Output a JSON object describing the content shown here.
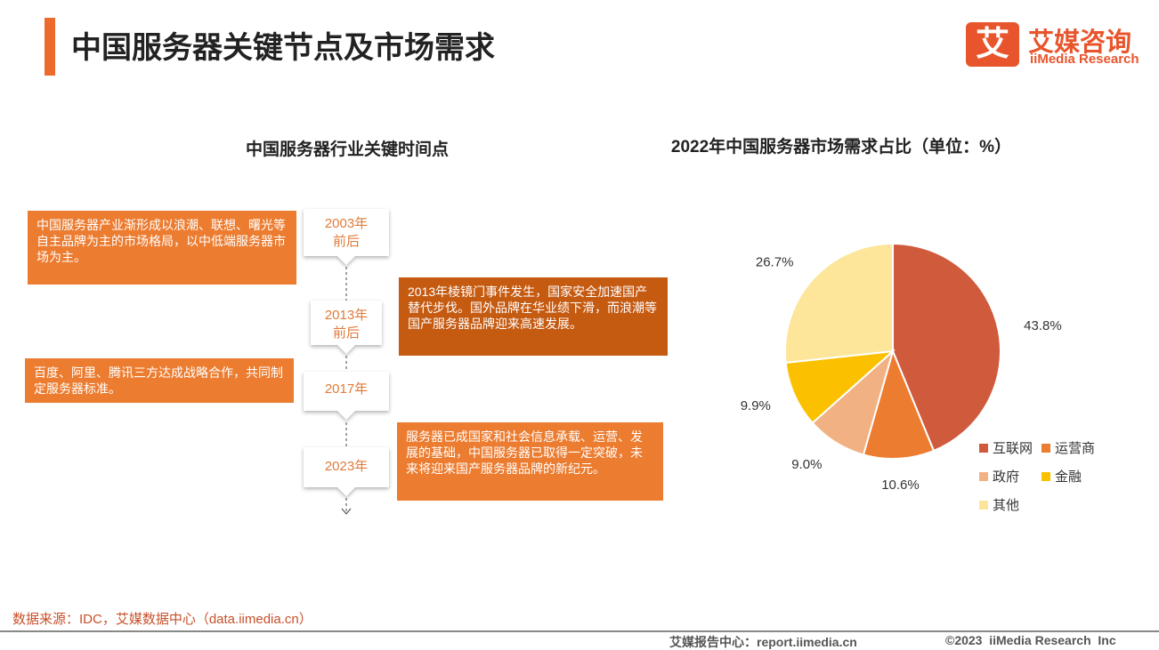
{
  "header": {
    "title": "中国服务器关键节点及市场需求",
    "logo_mark": "艾",
    "logo_cn": "艾媒咨询",
    "logo_en": "iiMedia Research"
  },
  "timeline": {
    "title": "中国服务器行业关键时间点",
    "nodes": [
      {
        "lines": [
          "2003年",
          "前后"
        ]
      },
      {
        "lines": [
          "2013年",
          "前后"
        ]
      },
      {
        "lines": [
          "2017年"
        ]
      },
      {
        "lines": [
          "2023年"
        ]
      }
    ],
    "events": [
      "中国服务器产业渐形成以浪潮、联想、曙光等自主品牌为主的市场格局，以中低端服务器市场为主。",
      "2013年棱镜门事件发生，国家安全加速国产替代步伐。国外品牌在华业绩下滑，而浪潮等国产服务器品牌迎来高速发展。",
      "百度、阿里、腾讯三方达成战略合作，共同制定服务器标准。",
      "服务器已成国家和社会信息承载、运营、发展的基础，中国服务器已取得一定突破，未来将迎来国产服务器品牌的新纪元。"
    ]
  },
  "chart_data": {
    "type": "pie",
    "title": "2022年中国服务器市场需求占比（单位：%）",
    "categories": [
      "互联网",
      "运营商",
      "政府",
      "金融",
      "其他"
    ],
    "values": [
      43.8,
      10.6,
      9.0,
      9.9,
      26.7
    ],
    "value_labels": [
      "43.8%",
      "10.6%",
      "9.0%",
      "9.9%",
      "26.7%"
    ],
    "colors": [
      "#d05a3c",
      "#ec7c30",
      "#f2b183",
      "#fbc100",
      "#fde59a"
    ]
  },
  "footer": {
    "source": "数据来源：IDC，艾媒数据中心（data.iimedia.cn）",
    "site": "艾媒报告中心：report.iimedia.cn",
    "copyright": "©2023  iiMedia Research  Inc"
  }
}
